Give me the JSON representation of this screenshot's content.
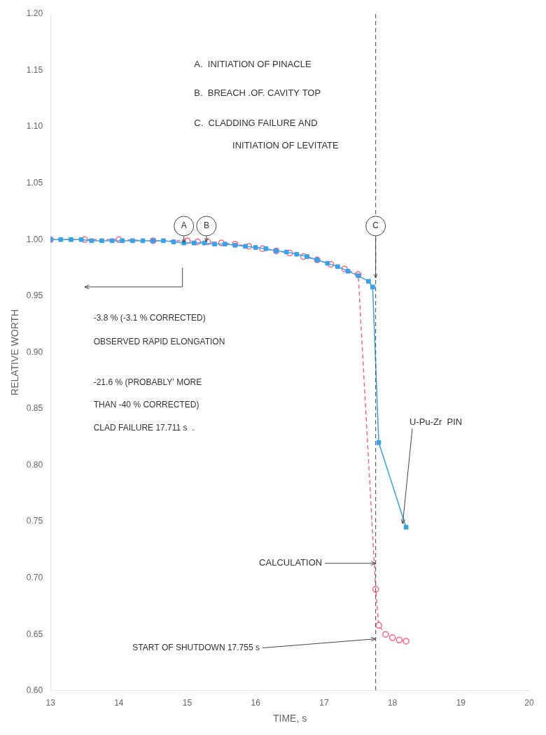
{
  "chart_data": {
    "type": "line",
    "xlabel": "TIME, s",
    "ylabel": "RELATIVE WORTH",
    "xlim": [
      13,
      20
    ],
    "ylim": [
      0.6,
      1.2
    ],
    "xticks": [
      13,
      14,
      15,
      16,
      17,
      18,
      19,
      20
    ],
    "yticks": [
      {
        "value": 0.6,
        "label": "0.60"
      },
      0.65,
      {
        "value": 0.7,
        "label": "0.70"
      },
      0.75,
      {
        "value": 0.8,
        "label": "0.80"
      },
      0.85,
      {
        "value": 0.9,
        "label": "0.90"
      },
      0.95,
      {
        "value": 1.0,
        "label": "1.00"
      },
      1.05,
      {
        "value": 1.1,
        "label": "1.10"
      },
      1.15,
      {
        "value": 1.2,
        "label": "1.20"
      }
    ],
    "grid": false,
    "series": [
      {
        "name": "U-Pu-Zr  PIN",
        "marker": "square",
        "line_style": "solid",
        "x": [
          13.0,
          13.15,
          13.3,
          13.45,
          13.6,
          13.75,
          13.9,
          14.05,
          14.2,
          14.35,
          14.5,
          14.65,
          14.8,
          14.95,
          15.1,
          15.25,
          15.4,
          15.55,
          15.7,
          15.85,
          16.0,
          16.15,
          16.3,
          16.45,
          16.6,
          16.75,
          16.9,
          17.05,
          17.2,
          17.35,
          17.5,
          17.65,
          17.711,
          17.8,
          18.2
        ],
        "values": [
          1.0,
          1.0,
          1.0,
          1.0,
          0.999,
          0.999,
          0.999,
          0.999,
          0.999,
          0.999,
          0.999,
          0.999,
          0.998,
          0.997,
          0.997,
          0.997,
          0.996,
          0.996,
          0.995,
          0.994,
          0.993,
          0.992,
          0.99,
          0.989,
          0.987,
          0.985,
          0.982,
          0.979,
          0.976,
          0.972,
          0.968,
          0.963,
          0.958,
          0.82,
          0.745
        ]
      },
      {
        "name": "CALCULATION",
        "marker": "open_circle",
        "line_style": "dashed",
        "x": [
          13.0,
          13.5,
          14.0,
          14.5,
          15.0,
          15.15,
          15.3,
          15.5,
          15.7,
          15.9,
          16.1,
          16.3,
          16.5,
          16.7,
          16.9,
          17.1,
          17.3,
          17.5,
          17.755,
          17.8,
          17.9,
          18.0,
          18.1,
          18.2
        ],
        "values": [
          1.0,
          1.0,
          1.0,
          0.999,
          0.999,
          0.998,
          0.998,
          0.997,
          0.996,
          0.994,
          0.992,
          0.99,
          0.988,
          0.985,
          0.982,
          0.978,
          0.974,
          0.969,
          0.69,
          0.658,
          0.65,
          0.647,
          0.645,
          0.644
        ]
      }
    ],
    "vline": 17.755,
    "events": [
      {
        "label": "A",
        "x": 14.95,
        "y": 1.012,
        "arrow_tip": 0.997
      },
      {
        "label": "B",
        "x": 15.28,
        "y": 1.012,
        "arrow_tip": 0.998
      },
      {
        "label": "C",
        "x": 17.755,
        "y": 1.012,
        "arrow_tip": 0.966
      }
    ],
    "annotations": [
      {
        "text": "A.  INITIATION OF PINACLE"
      },
      {
        "text": "B.  BREACH .OF. CAVITY TOP"
      },
      {
        "text": "C.  CLADDING FAILURE AND"
      },
      {
        "text": "INITIATION OF LEVITATE"
      },
      {
        "text": "-3.8 % (-3.1 % CORRECTED)"
      },
      {
        "text": "OBSERVED RAPID ELONGATION"
      },
      {
        "text": "-21.6 % (PROBABLY’ MORE"
      },
      {
        "text": "THAN -40 % CORRECTED)"
      },
      {
        "text": "CLAD FAILURE 17.711 s  ."
      },
      {
        "text": "START OF SHUTDOWN 17.755 s"
      }
    ]
  }
}
